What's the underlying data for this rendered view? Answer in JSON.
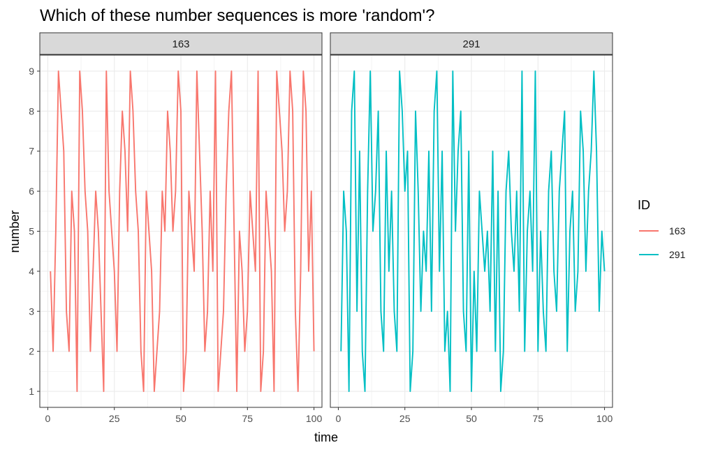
{
  "chart_data": {
    "type": "line",
    "title": "Which of these number sequences is more 'random'?",
    "xlabel": "time",
    "ylabel": "number",
    "xlim": [
      -3,
      103
    ],
    "ylim": [
      0.6,
      9.4
    ],
    "xticks": [
      0,
      25,
      50,
      75,
      100
    ],
    "yticks": [
      1,
      2,
      3,
      4,
      5,
      6,
      7,
      8,
      9
    ],
    "grid": true,
    "legend": {
      "title": "ID",
      "position": "right"
    },
    "facets": [
      "163",
      "291"
    ],
    "series": [
      {
        "name": "163",
        "color": "#F8766D",
        "x": [
          1,
          2,
          3,
          4,
          5,
          6,
          7,
          8,
          9,
          10,
          11,
          12,
          13,
          14,
          15,
          16,
          17,
          18,
          19,
          20,
          21,
          22,
          23,
          24,
          25,
          26,
          27,
          28,
          29,
          30,
          31,
          32,
          33,
          34,
          35,
          36,
          37,
          38,
          39,
          40,
          41,
          42,
          43,
          44,
          45,
          46,
          47,
          48,
          49,
          50,
          51,
          52,
          53,
          54,
          55,
          56,
          57,
          58,
          59,
          60,
          61,
          62,
          63,
          64,
          65,
          66,
          67,
          68,
          69,
          70,
          71,
          72,
          73,
          74,
          75,
          76,
          77,
          78,
          79,
          80,
          81,
          82,
          83,
          84,
          85,
          86,
          87,
          88,
          89,
          90,
          91,
          92,
          93,
          94,
          95,
          96,
          97,
          98,
          99,
          100
        ],
        "y": [
          4,
          2,
          5,
          9,
          8,
          7,
          3,
          2,
          6,
          5,
          1,
          9,
          8,
          6,
          5,
          2,
          4,
          6,
          5,
          3,
          1,
          9,
          6,
          5,
          4,
          2,
          6,
          8,
          7,
          5,
          9,
          8,
          6,
          5,
          2,
          1,
          6,
          5,
          4,
          1,
          2,
          3,
          6,
          5,
          8,
          7,
          5,
          6,
          9,
          8,
          1,
          2,
          6,
          5,
          4,
          9,
          7,
          5,
          2,
          3,
          6,
          4,
          9,
          1,
          2,
          3,
          6,
          8,
          9,
          5,
          1,
          5,
          4,
          2,
          3,
          6,
          5,
          4,
          9,
          1,
          2,
          6,
          5,
          4,
          1,
          9,
          8,
          7,
          5,
          6,
          9,
          8,
          3,
          1,
          4,
          9,
          8,
          4,
          6,
          2
        ]
      },
      {
        "name": "291",
        "color": "#00BFC4",
        "x": [
          1,
          2,
          3,
          4,
          5,
          6,
          7,
          8,
          9,
          10,
          11,
          12,
          13,
          14,
          15,
          16,
          17,
          18,
          19,
          20,
          21,
          22,
          23,
          24,
          25,
          26,
          27,
          28,
          29,
          30,
          31,
          32,
          33,
          34,
          35,
          36,
          37,
          38,
          39,
          40,
          41,
          42,
          43,
          44,
          45,
          46,
          47,
          48,
          49,
          50,
          51,
          52,
          53,
          54,
          55,
          56,
          57,
          58,
          59,
          60,
          61,
          62,
          63,
          64,
          65,
          66,
          67,
          68,
          69,
          70,
          71,
          72,
          73,
          74,
          75,
          76,
          77,
          78,
          79,
          80,
          81,
          82,
          83,
          84,
          85,
          86,
          87,
          88,
          89,
          90,
          91,
          92,
          93,
          94,
          95,
          96,
          97,
          98,
          99,
          100
        ],
        "y": [
          2,
          6,
          5,
          1,
          8,
          9,
          3,
          7,
          2,
          1,
          6,
          9,
          5,
          6,
          8,
          3,
          2,
          7,
          4,
          6,
          3,
          2,
          9,
          8,
          6,
          7,
          1,
          2,
          8,
          6,
          3,
          5,
          4,
          7,
          3,
          8,
          9,
          4,
          7,
          2,
          3,
          1,
          9,
          5,
          7,
          8,
          3,
          2,
          7,
          1,
          4,
          2,
          6,
          5,
          4,
          5,
          3,
          7,
          2,
          6,
          1,
          2,
          6,
          7,
          5,
          4,
          6,
          3,
          9,
          2,
          5,
          6,
          4,
          9,
          2,
          5,
          3,
          2,
          6,
          7,
          4,
          3,
          6,
          7,
          8,
          2,
          5,
          6,
          3,
          4,
          8,
          7,
          4,
          6,
          7,
          9,
          7,
          3,
          5,
          4
        ]
      }
    ]
  }
}
